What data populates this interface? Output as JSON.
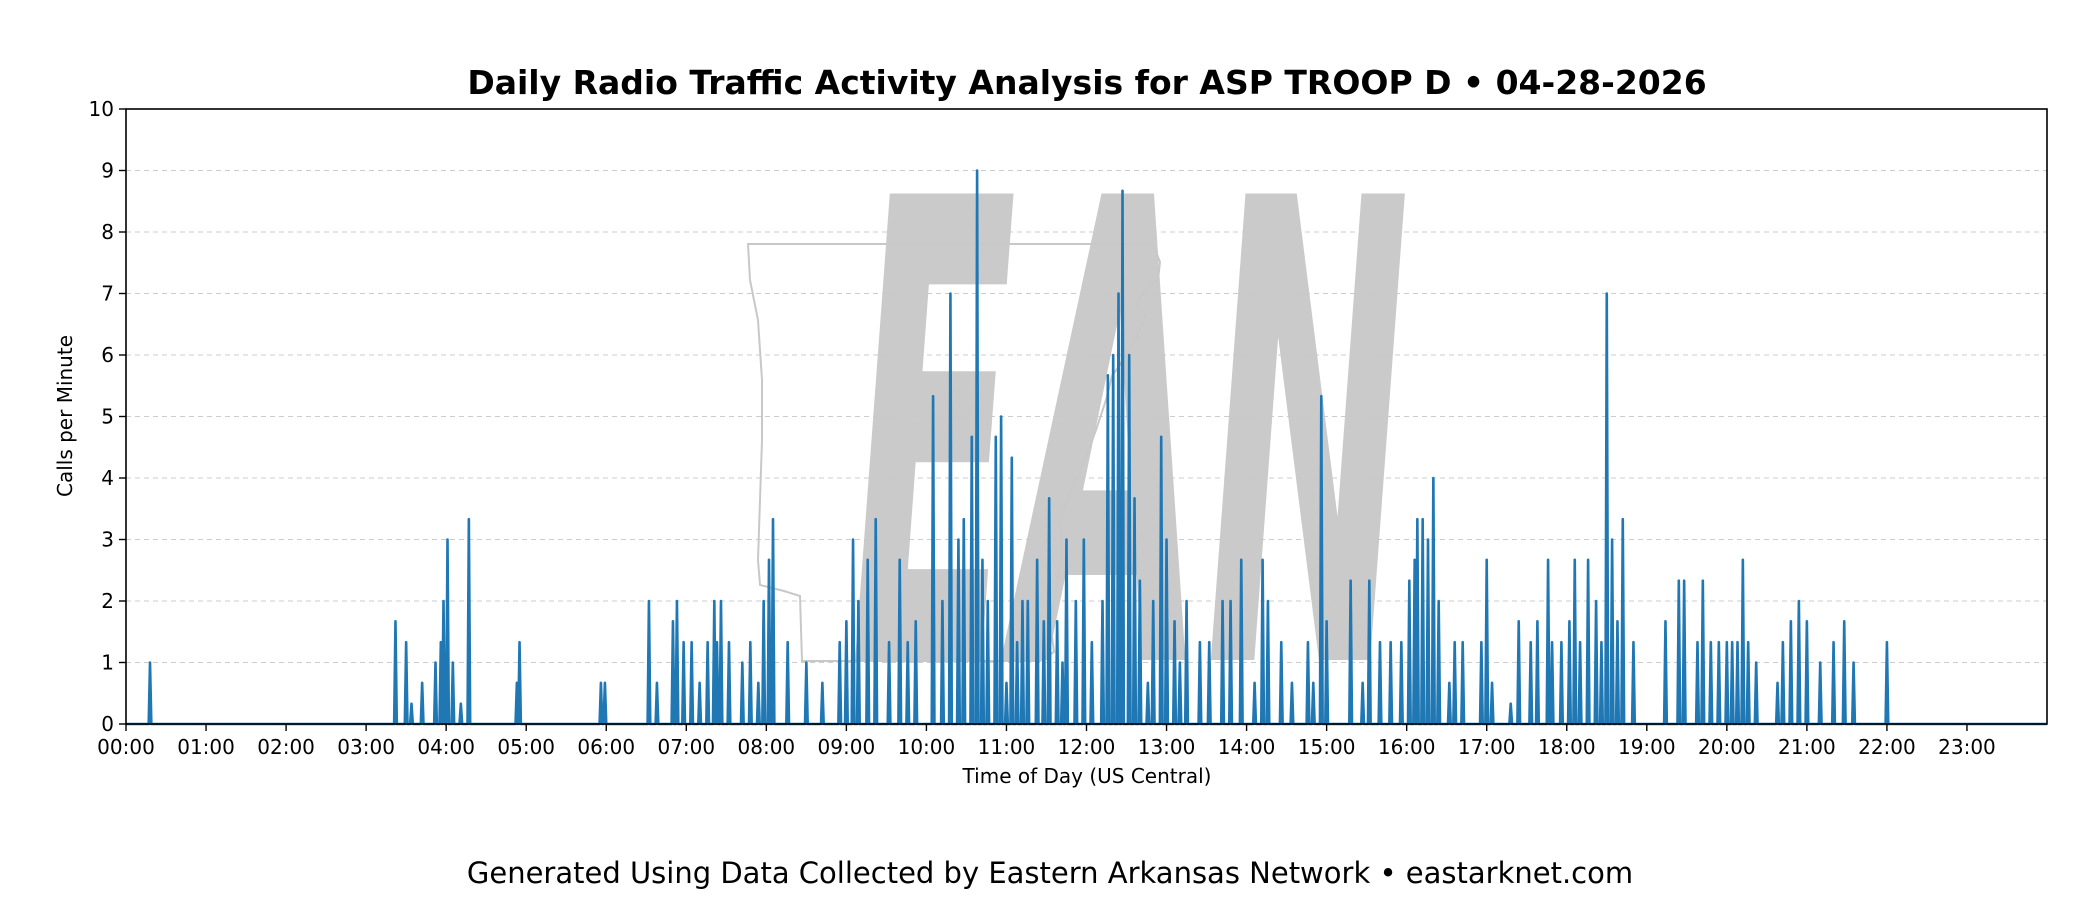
{
  "chart_data": {
    "type": "area",
    "title": "Daily Radio Traffic Activity Analysis for ASP TROOP D • 04-28-2026",
    "xlabel": "Time of Day (US Central)",
    "ylabel": "Calls per Minute",
    "xlim": [
      0,
      1440
    ],
    "ylim": [
      0,
      10
    ],
    "yticks": [
      "0",
      "1",
      "2",
      "3",
      "4",
      "5",
      "6",
      "7",
      "8",
      "9",
      "10"
    ],
    "xtick_labels": [
      "00:00",
      "01:00",
      "02:00",
      "03:00",
      "04:00",
      "05:00",
      "06:00",
      "07:00",
      "08:00",
      "09:00",
      "10:00",
      "11:00",
      "12:00",
      "13:00",
      "14:00",
      "15:00",
      "16:00",
      "17:00",
      "18:00",
      "19:00",
      "20:00",
      "21:00",
      "22:00",
      "23:00"
    ],
    "grid": "horizontal-dashed",
    "line_color": "#1f77b4",
    "fill_color": "#b3d1ea",
    "watermark": "EAN",
    "x_unit": "minute of day (00:00 = 0)",
    "peaks": [
      [
        18,
        1.0
      ],
      [
        202,
        1.67
      ],
      [
        210,
        1.33
      ],
      [
        214,
        0.33
      ],
      [
        222,
        0.67
      ],
      [
        232,
        1.0
      ],
      [
        236,
        1.33
      ],
      [
        238,
        2.0
      ],
      [
        241,
        3.0
      ],
      [
        245,
        1.0
      ],
      [
        251,
        0.33
      ],
      [
        257,
        3.33
      ],
      [
        293,
        0.67
      ],
      [
        295,
        1.33
      ],
      [
        356,
        0.67
      ],
      [
        359,
        0.67
      ],
      [
        392,
        2.0
      ],
      [
        398,
        0.67
      ],
      [
        410,
        1.67
      ],
      [
        413,
        2.0
      ],
      [
        418,
        1.33
      ],
      [
        424,
        1.33
      ],
      [
        430,
        0.67
      ],
      [
        436,
        1.33
      ],
      [
        441,
        2.0
      ],
      [
        443,
        1.33
      ],
      [
        446,
        2.0
      ],
      [
        452,
        1.33
      ],
      [
        462,
        1.0
      ],
      [
        468,
        1.33
      ],
      [
        474,
        0.67
      ],
      [
        478,
        2.0
      ],
      [
        482,
        2.67
      ],
      [
        485,
        3.33
      ],
      [
        496,
        1.33
      ],
      [
        510,
        1.0
      ],
      [
        522,
        0.67
      ],
      [
        535,
        1.33
      ],
      [
        540,
        1.67
      ],
      [
        545,
        3.0
      ],
      [
        549,
        2.0
      ],
      [
        556,
        2.67
      ],
      [
        562,
        3.33
      ],
      [
        572,
        1.33
      ],
      [
        580,
        2.67
      ],
      [
        586,
        1.33
      ],
      [
        592,
        1.67
      ],
      [
        605,
        5.33
      ],
      [
        612,
        2.0
      ],
      [
        618,
        7.0
      ],
      [
        624,
        3.0
      ],
      [
        628,
        3.33
      ],
      [
        634,
        4.67
      ],
      [
        638,
        9.0
      ],
      [
        642,
        2.67
      ],
      [
        646,
        2.0
      ],
      [
        652,
        4.67
      ],
      [
        656,
        5.0
      ],
      [
        660,
        0.67
      ],
      [
        664,
        4.33
      ],
      [
        668,
        1.33
      ],
      [
        672,
        2.0
      ],
      [
        676,
        2.0
      ],
      [
        683,
        2.67
      ],
      [
        688,
        1.67
      ],
      [
        692,
        3.67
      ],
      [
        698,
        1.67
      ],
      [
        702,
        1.0
      ],
      [
        705,
        3.0
      ],
      [
        712,
        2.0
      ],
      [
        718,
        3.0
      ],
      [
        724,
        1.33
      ],
      [
        732,
        2.0
      ],
      [
        736,
        5.67
      ],
      [
        740,
        6.0
      ],
      [
        744,
        7.0
      ],
      [
        747,
        8.67
      ],
      [
        752,
        6.0
      ],
      [
        756,
        3.67
      ],
      [
        760,
        2.33
      ],
      [
        766,
        0.67
      ],
      [
        770,
        2.0
      ],
      [
        776,
        4.67
      ],
      [
        780,
        3.0
      ],
      [
        786,
        1.67
      ],
      [
        790,
        1.0
      ],
      [
        795,
        2.0
      ],
      [
        805,
        1.33
      ],
      [
        812,
        1.33
      ],
      [
        822,
        2.0
      ],
      [
        828,
        2.0
      ],
      [
        836,
        2.67
      ],
      [
        846,
        0.67
      ],
      [
        852,
        2.67
      ],
      [
        856,
        2.0
      ],
      [
        866,
        1.33
      ],
      [
        874,
        0.67
      ],
      [
        886,
        1.33
      ],
      [
        890,
        0.67
      ],
      [
        896,
        5.33
      ],
      [
        900,
        1.67
      ],
      [
        918,
        2.33
      ],
      [
        927,
        0.67
      ],
      [
        932,
        2.33
      ],
      [
        940,
        1.33
      ],
      [
        948,
        1.33
      ],
      [
        956,
        1.33
      ],
      [
        962,
        2.33
      ],
      [
        966,
        2.67
      ],
      [
        968,
        3.33
      ],
      [
        972,
        3.33
      ],
      [
        976,
        3.0
      ],
      [
        980,
        4.0
      ],
      [
        984,
        2.0
      ],
      [
        992,
        0.67
      ],
      [
        996,
        1.33
      ],
      [
        1002,
        1.33
      ],
      [
        1016,
        1.33
      ],
      [
        1020,
        2.67
      ],
      [
        1024,
        0.67
      ],
      [
        1038,
        0.33
      ],
      [
        1044,
        1.67
      ],
      [
        1053,
        1.33
      ],
      [
        1058,
        1.67
      ],
      [
        1066,
        2.67
      ],
      [
        1069,
        1.33
      ],
      [
        1076,
        1.33
      ],
      [
        1082,
        1.67
      ],
      [
        1086,
        2.67
      ],
      [
        1090,
        1.33
      ],
      [
        1096,
        2.67
      ],
      [
        1102,
        2.0
      ],
      [
        1106,
        1.33
      ],
      [
        1110,
        7.0
      ],
      [
        1114,
        3.0
      ],
      [
        1118,
        1.67
      ],
      [
        1122,
        3.33
      ],
      [
        1130,
        1.33
      ],
      [
        1154,
        1.67
      ],
      [
        1164,
        2.33
      ],
      [
        1168,
        2.33
      ],
      [
        1178,
        1.33
      ],
      [
        1182,
        2.33
      ],
      [
        1188,
        1.33
      ],
      [
        1194,
        1.33
      ],
      [
        1200,
        1.33
      ],
      [
        1204,
        1.33
      ],
      [
        1208,
        1.33
      ],
      [
        1212,
        2.67
      ],
      [
        1216,
        1.33
      ],
      [
        1222,
        1.0
      ],
      [
        1238,
        0.67
      ],
      [
        1242,
        1.33
      ],
      [
        1248,
        1.67
      ],
      [
        1254,
        2.0
      ],
      [
        1260,
        1.67
      ],
      [
        1270,
        1.0
      ],
      [
        1280,
        1.33
      ],
      [
        1288,
        1.67
      ],
      [
        1295,
        1.0
      ],
      [
        1320,
        1.33
      ]
    ]
  },
  "footer": "Generated Using Data Collected by Eastern Arkansas Network • eastarknet.com"
}
